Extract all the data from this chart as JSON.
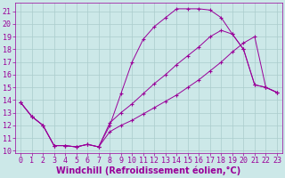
{
  "background_color": "#cce8e8",
  "grid_color": "#aacccc",
  "line_color": "#990099",
  "xlim": [
    -0.5,
    23.5
  ],
  "ylim": [
    9.8,
    21.7
  ],
  "yticks": [
    10,
    11,
    12,
    13,
    14,
    15,
    16,
    17,
    18,
    19,
    20,
    21
  ],
  "xticks": [
    0,
    1,
    2,
    3,
    4,
    5,
    6,
    7,
    8,
    9,
    10,
    11,
    12,
    13,
    14,
    15,
    16,
    17,
    18,
    19,
    20,
    21,
    22,
    23
  ],
  "xlabel": "Windchill (Refroidissement éolien,°C)",
  "curve1_x": [
    0,
    1,
    2,
    3,
    4,
    5,
    6,
    7,
    8,
    9,
    10,
    11,
    12,
    13,
    14,
    15,
    16,
    17,
    18,
    19,
    20,
    21,
    22,
    23
  ],
  "curve1_y": [
    13.8,
    12.7,
    12.0,
    10.4,
    10.4,
    10.3,
    10.5,
    10.3,
    12.0,
    14.5,
    17.0,
    18.8,
    19.8,
    20.5,
    21.2,
    21.2,
    21.2,
    21.1,
    20.5,
    19.2,
    18.0,
    15.2,
    15.0,
    14.6
  ],
  "curve2_x": [
    0,
    1,
    2,
    3,
    4,
    5,
    6,
    7,
    8,
    9,
    10,
    11,
    12,
    13,
    14,
    15,
    16,
    17,
    18,
    19,
    20,
    21,
    22,
    23
  ],
  "curve2_y": [
    13.8,
    12.7,
    12.0,
    10.4,
    10.4,
    10.3,
    10.5,
    10.3,
    12.2,
    13.0,
    13.7,
    14.5,
    15.3,
    16.0,
    16.8,
    17.5,
    18.2,
    19.0,
    19.5,
    19.2,
    18.0,
    15.2,
    15.0,
    14.6
  ],
  "curve3_x": [
    0,
    1,
    2,
    3,
    4,
    5,
    6,
    7,
    8,
    9,
    10,
    11,
    12,
    13,
    14,
    15,
    16,
    17,
    18,
    19,
    20,
    21,
    22,
    23
  ],
  "curve3_y": [
    13.8,
    12.7,
    12.0,
    10.4,
    10.4,
    10.3,
    10.5,
    10.3,
    11.5,
    12.0,
    12.4,
    12.9,
    13.4,
    13.9,
    14.4,
    15.0,
    15.6,
    16.3,
    17.0,
    17.8,
    18.5,
    19.0,
    15.0,
    14.6
  ],
  "tick_fontsize": 6,
  "axis_fontsize": 7
}
